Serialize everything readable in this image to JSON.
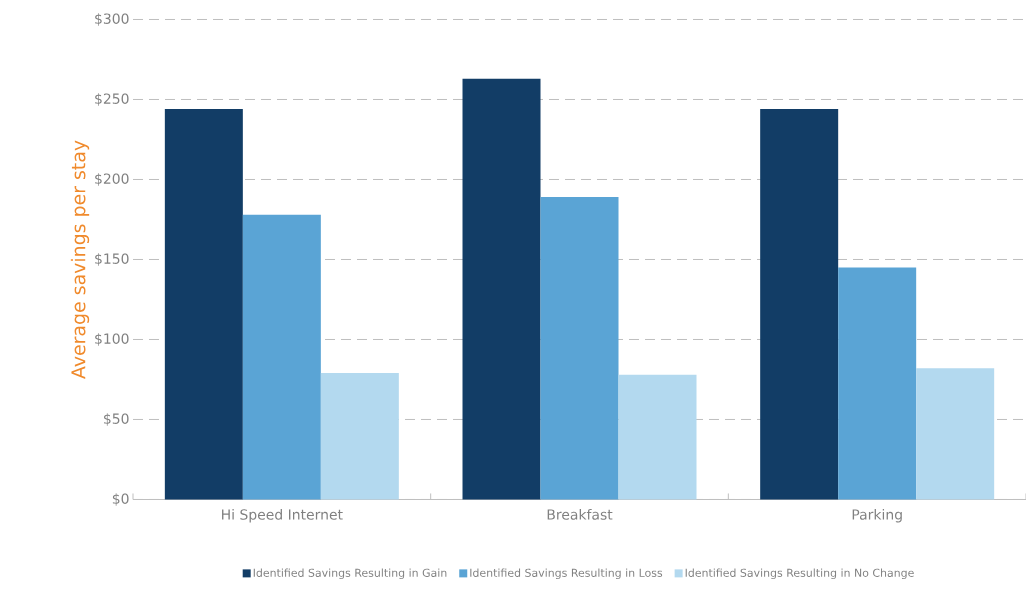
{
  "chart_data": {
    "type": "bar",
    "ylabel": "Average savings per stay",
    "categories": [
      "Hi Speed Internet",
      "Breakfast",
      "Parking"
    ],
    "series": [
      {
        "name": "Identified Savings Resulting in Gain",
        "color": "#123d66",
        "values": [
          244,
          263,
          244
        ]
      },
      {
        "name": "Identified Savings Resulting in Loss",
        "color": "#5aa4d5",
        "values": [
          178,
          189,
          145
        ]
      },
      {
        "name": "Identified Savings Resulting in No Change",
        "color": "#b3d9ef",
        "values": [
          79,
          78,
          82
        ]
      }
    ],
    "ylim": [
      0,
      300
    ],
    "yticks": [
      {
        "value": 0,
        "label": "$0"
      },
      {
        "value": 50,
        "label": "$50"
      },
      {
        "value": 100,
        "label": "$100"
      },
      {
        "value": 150,
        "label": "$150"
      },
      {
        "value": 200,
        "label": "$200"
      },
      {
        "value": 250,
        "label": "$250"
      },
      {
        "value": 300,
        "label": "$300"
      }
    ],
    "grid": "y",
    "legend": "bottom"
  }
}
